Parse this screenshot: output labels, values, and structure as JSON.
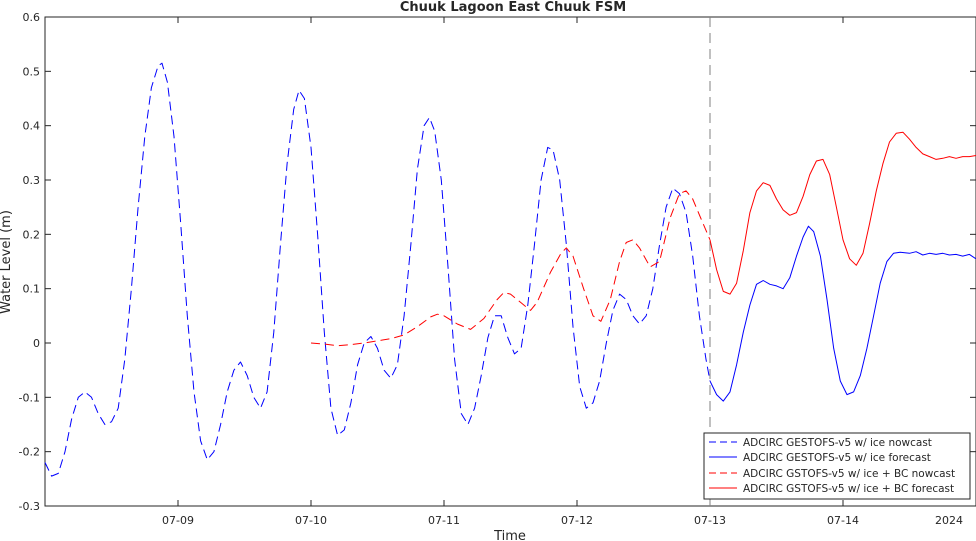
{
  "chart_data": {
    "type": "line",
    "title": "Chuuk Lagoon East Chuuk FSM",
    "xlabel": "Time",
    "ylabel": "Water Level (m)",
    "year_label": "2024",
    "xlim": [
      0,
      7
    ],
    "ylim": [
      -0.3,
      0.6
    ],
    "xticks": [
      {
        "x": 1,
        "label": "07-09"
      },
      {
        "x": 2,
        "label": "07-10"
      },
      {
        "x": 3,
        "label": "07-11"
      },
      {
        "x": 4,
        "label": "07-12"
      },
      {
        "x": 5,
        "label": "07-13"
      },
      {
        "x": 6,
        "label": "07-14"
      }
    ],
    "yticks": [
      -0.3,
      -0.2,
      -0.1,
      0,
      0.1,
      0.2,
      0.3,
      0.4,
      0.5,
      0.6
    ],
    "ytick_labels": [
      "-0.3",
      "-0.2",
      "-0.1",
      "0",
      "0.1",
      "0.2",
      "0.3",
      "0.4",
      "0.5",
      "0.6"
    ],
    "nowcast_forecast_divider": 5.0,
    "legend_position": "bottom-right",
    "grid": false,
    "series": [
      {
        "name": "ADCIRC GESTOFS-v5 w/ ice nowcast",
        "color": "#0000ff",
        "dash": "dashed",
        "points": [
          [
            0.0,
            -0.22
          ],
          [
            0.05,
            -0.245
          ],
          [
            0.1,
            -0.24
          ],
          [
            0.15,
            -0.2
          ],
          [
            0.2,
            -0.14
          ],
          [
            0.25,
            -0.1
          ],
          [
            0.3,
            -0.09
          ],
          [
            0.35,
            -0.1
          ],
          [
            0.4,
            -0.13
          ],
          [
            0.45,
            -0.15
          ],
          [
            0.5,
            -0.145
          ],
          [
            0.55,
            -0.12
          ],
          [
            0.6,
            -0.03
          ],
          [
            0.65,
            0.1
          ],
          [
            0.7,
            0.25
          ],
          [
            0.75,
            0.38
          ],
          [
            0.8,
            0.47
          ],
          [
            0.85,
            0.51
          ],
          [
            0.88,
            0.515
          ],
          [
            0.92,
            0.48
          ],
          [
            0.97,
            0.38
          ],
          [
            1.02,
            0.22
          ],
          [
            1.07,
            0.05
          ],
          [
            1.12,
            -0.09
          ],
          [
            1.17,
            -0.18
          ],
          [
            1.22,
            -0.215
          ],
          [
            1.27,
            -0.2
          ],
          [
            1.32,
            -0.15
          ],
          [
            1.37,
            -0.09
          ],
          [
            1.42,
            -0.05
          ],
          [
            1.47,
            -0.035
          ],
          [
            1.52,
            -0.06
          ],
          [
            1.57,
            -0.1
          ],
          [
            1.62,
            -0.12
          ],
          [
            1.67,
            -0.09
          ],
          [
            1.72,
            0.02
          ],
          [
            1.77,
            0.18
          ],
          [
            1.82,
            0.33
          ],
          [
            1.87,
            0.43
          ],
          [
            1.91,
            0.465
          ],
          [
            1.95,
            0.45
          ],
          [
            2.0,
            0.36
          ],
          [
            2.05,
            0.2
          ],
          [
            2.1,
            0.02
          ],
          [
            2.15,
            -0.12
          ],
          [
            2.2,
            -0.17
          ],
          [
            2.25,
            -0.16
          ],
          [
            2.3,
            -0.11
          ],
          [
            2.35,
            -0.04
          ],
          [
            2.4,
            0.0
          ],
          [
            2.45,
            0.012
          ],
          [
            2.5,
            -0.01
          ],
          [
            2.55,
            -0.05
          ],
          [
            2.6,
            -0.065
          ],
          [
            2.65,
            -0.04
          ],
          [
            2.7,
            0.05
          ],
          [
            2.75,
            0.18
          ],
          [
            2.8,
            0.32
          ],
          [
            2.85,
            0.4
          ],
          [
            2.89,
            0.415
          ],
          [
            2.93,
            0.39
          ],
          [
            2.98,
            0.3
          ],
          [
            3.03,
            0.14
          ],
          [
            3.08,
            -0.03
          ],
          [
            3.13,
            -0.13
          ],
          [
            3.18,
            -0.15
          ],
          [
            3.23,
            -0.12
          ],
          [
            3.28,
            -0.06
          ],
          [
            3.33,
            0.01
          ],
          [
            3.38,
            0.05
          ],
          [
            3.43,
            0.05
          ],
          [
            3.48,
            0.01
          ],
          [
            3.53,
            -0.02
          ],
          [
            3.58,
            -0.01
          ],
          [
            3.63,
            0.07
          ],
          [
            3.68,
            0.18
          ],
          [
            3.73,
            0.3
          ],
          [
            3.78,
            0.36
          ],
          [
            3.82,
            0.355
          ],
          [
            3.87,
            0.3
          ],
          [
            3.92,
            0.18
          ],
          [
            3.97,
            0.03
          ],
          [
            4.02,
            -0.08
          ],
          [
            4.07,
            -0.12
          ],
          [
            4.12,
            -0.11
          ],
          [
            4.17,
            -0.07
          ],
          [
            4.22,
            0.0
          ],
          [
            4.27,
            0.06
          ],
          [
            4.32,
            0.09
          ],
          [
            4.37,
            0.08
          ],
          [
            4.42,
            0.05
          ],
          [
            4.47,
            0.035
          ],
          [
            4.52,
            0.05
          ],
          [
            4.57,
            0.1
          ],
          [
            4.62,
            0.18
          ],
          [
            4.67,
            0.25
          ],
          [
            4.72,
            0.285
          ],
          [
            4.77,
            0.275
          ],
          [
            4.82,
            0.24
          ],
          [
            4.87,
            0.16
          ],
          [
            4.92,
            0.05
          ],
          [
            4.97,
            -0.03
          ],
          [
            5.0,
            -0.07
          ]
        ]
      },
      {
        "name": "ADCIRC GESTOFS-v5 w/ ice forecast",
        "color": "#0000ff",
        "dash": "solid",
        "points": [
          [
            5.0,
            -0.07
          ],
          [
            5.05,
            -0.095
          ],
          [
            5.1,
            -0.107
          ],
          [
            5.15,
            -0.09
          ],
          [
            5.2,
            -0.04
          ],
          [
            5.25,
            0.02
          ],
          [
            5.3,
            0.07
          ],
          [
            5.35,
            0.108
          ],
          [
            5.4,
            0.115
          ],
          [
            5.45,
            0.108
          ],
          [
            5.5,
            0.105
          ],
          [
            5.55,
            0.1
          ],
          [
            5.6,
            0.12
          ],
          [
            5.65,
            0.16
          ],
          [
            5.7,
            0.195
          ],
          [
            5.74,
            0.215
          ],
          [
            5.78,
            0.205
          ],
          [
            5.83,
            0.16
          ],
          [
            5.88,
            0.08
          ],
          [
            5.93,
            -0.01
          ],
          [
            5.98,
            -0.07
          ],
          [
            6.03,
            -0.095
          ],
          [
            6.08,
            -0.09
          ],
          [
            6.13,
            -0.06
          ],
          [
            6.18,
            -0.01
          ],
          [
            6.23,
            0.05
          ],
          [
            6.28,
            0.11
          ],
          [
            6.33,
            0.15
          ],
          [
            6.38,
            0.165
          ],
          [
            6.43,
            0.167
          ],
          [
            6.5,
            0.165
          ],
          [
            6.55,
            0.168
          ],
          [
            6.6,
            0.162
          ],
          [
            6.65,
            0.165
          ],
          [
            6.7,
            0.163
          ],
          [
            6.75,
            0.165
          ],
          [
            6.8,
            0.162
          ],
          [
            6.85,
            0.163
          ],
          [
            6.9,
            0.16
          ],
          [
            6.95,
            0.163
          ],
          [
            7.0,
            0.155
          ]
        ]
      },
      {
        "name": "ADCIRC GSTOFS-v5 w/ ice + BC nowcast",
        "color": "#ff0000",
        "dash": "dashed",
        "points": [
          [
            2.0,
            0.0
          ],
          [
            2.1,
            -0.002
          ],
          [
            2.2,
            -0.005
          ],
          [
            2.3,
            -0.003
          ],
          [
            2.4,
            0.0
          ],
          [
            2.5,
            0.004
          ],
          [
            2.6,
            0.008
          ],
          [
            2.7,
            0.015
          ],
          [
            2.8,
            0.03
          ],
          [
            2.9,
            0.048
          ],
          [
            2.95,
            0.053
          ],
          [
            3.0,
            0.05
          ],
          [
            3.1,
            0.035
          ],
          [
            3.2,
            0.025
          ],
          [
            3.3,
            0.045
          ],
          [
            3.4,
            0.08
          ],
          [
            3.45,
            0.093
          ],
          [
            3.5,
            0.09
          ],
          [
            3.6,
            0.07
          ],
          [
            3.65,
            0.06
          ],
          [
            3.7,
            0.075
          ],
          [
            3.8,
            0.13
          ],
          [
            3.88,
            0.165
          ],
          [
            3.92,
            0.175
          ],
          [
            3.97,
            0.16
          ],
          [
            4.05,
            0.1
          ],
          [
            4.12,
            0.05
          ],
          [
            4.18,
            0.04
          ],
          [
            4.25,
            0.08
          ],
          [
            4.32,
            0.15
          ],
          [
            4.37,
            0.185
          ],
          [
            4.42,
            0.19
          ],
          [
            4.47,
            0.175
          ],
          [
            4.55,
            0.14
          ],
          [
            4.62,
            0.15
          ],
          [
            4.7,
            0.23
          ],
          [
            4.77,
            0.275
          ],
          [
            4.82,
            0.28
          ],
          [
            4.87,
            0.265
          ],
          [
            4.93,
            0.23
          ],
          [
            5.0,
            0.19
          ]
        ]
      },
      {
        "name": "ADCIRC GSTOFS-v5 w/ ice + BC forecast",
        "color": "#ff0000",
        "dash": "solid",
        "points": [
          [
            5.0,
            0.19
          ],
          [
            5.05,
            0.135
          ],
          [
            5.1,
            0.095
          ],
          [
            5.15,
            0.09
          ],
          [
            5.2,
            0.11
          ],
          [
            5.25,
            0.17
          ],
          [
            5.3,
            0.24
          ],
          [
            5.35,
            0.28
          ],
          [
            5.4,
            0.295
          ],
          [
            5.45,
            0.29
          ],
          [
            5.5,
            0.265
          ],
          [
            5.55,
            0.245
          ],
          [
            5.6,
            0.235
          ],
          [
            5.65,
            0.24
          ],
          [
            5.7,
            0.27
          ],
          [
            5.75,
            0.31
          ],
          [
            5.8,
            0.335
          ],
          [
            5.85,
            0.338
          ],
          [
            5.9,
            0.31
          ],
          [
            5.95,
            0.25
          ],
          [
            6.0,
            0.19
          ],
          [
            6.05,
            0.155
          ],
          [
            6.1,
            0.143
          ],
          [
            6.15,
            0.165
          ],
          [
            6.2,
            0.22
          ],
          [
            6.25,
            0.28
          ],
          [
            6.3,
            0.33
          ],
          [
            6.35,
            0.37
          ],
          [
            6.4,
            0.386
          ],
          [
            6.45,
            0.388
          ],
          [
            6.5,
            0.375
          ],
          [
            6.55,
            0.36
          ],
          [
            6.6,
            0.348
          ],
          [
            6.65,
            0.343
          ],
          [
            6.7,
            0.338
          ],
          [
            6.75,
            0.34
          ],
          [
            6.8,
            0.343
          ],
          [
            6.85,
            0.34
          ],
          [
            6.9,
            0.343
          ],
          [
            6.95,
            0.343
          ],
          [
            7.0,
            0.345
          ]
        ]
      }
    ]
  }
}
